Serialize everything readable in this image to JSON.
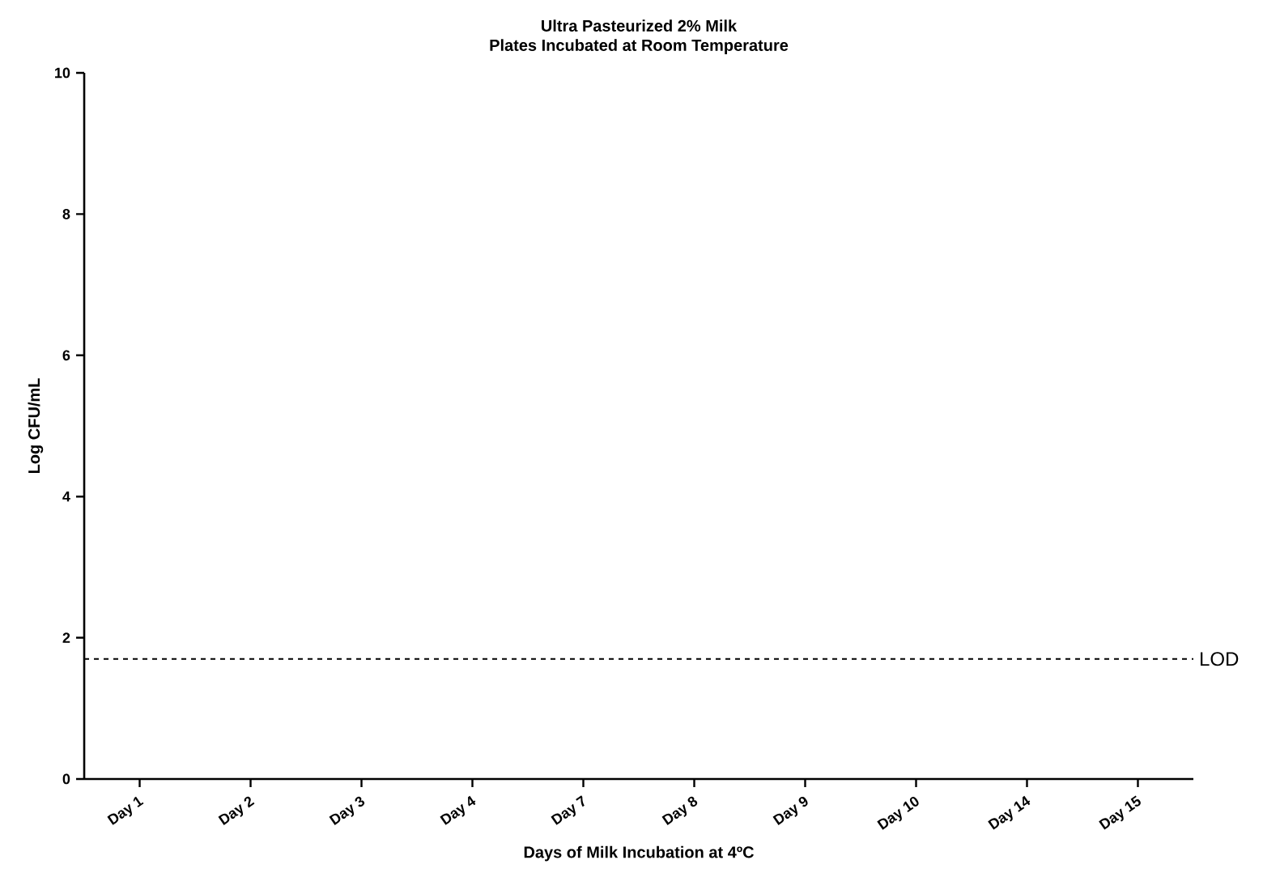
{
  "chart_data": {
    "type": "bar",
    "title": "Ultra Pasteurized 2% Milk",
    "subtitle": "Plates Incubated at Room Temperature",
    "xlabel": "Days of Milk Incubation at 4ºC",
    "ylabel": "Log CFU/mL",
    "categories": [
      "Day 1",
      "Day 2",
      "Day 3",
      "Day 4",
      "Day 7",
      "Day 8",
      "Day 9",
      "Day 10",
      "Day 14",
      "Day 15"
    ],
    "values": [
      null,
      null,
      null,
      null,
      null,
      null,
      null,
      null,
      null,
      null
    ],
    "ylim": [
      0,
      10
    ],
    "yticks": [
      0,
      2,
      4,
      6,
      8,
      10
    ],
    "ref_lines": [
      {
        "axis": "y",
        "value": 1.7,
        "label": "LOD",
        "color": "#000000",
        "line_style": "dashed"
      }
    ]
  }
}
